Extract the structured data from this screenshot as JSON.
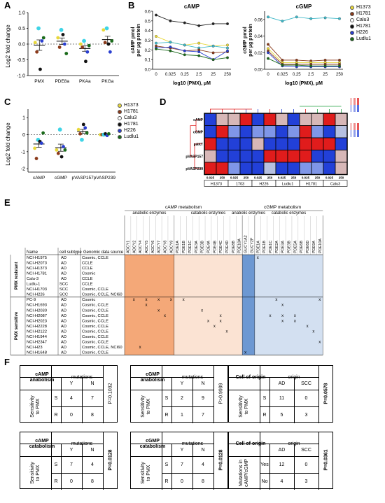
{
  "panels": {
    "A": "A",
    "B": "B",
    "C": "C",
    "D": "D",
    "E": "E",
    "F": "F"
  },
  "lines": [
    "H1373",
    "H1781",
    "Calu3",
    "H1781",
    "H226",
    "Ludlu1"
  ],
  "line_colors": [
    "#e8d83a",
    "#8b3a1a",
    "#ffffff",
    "#111111",
    "#2a3fd0",
    "#1a6a1a"
  ],
  "panelA": {
    "ylabel": "Log2 fold change",
    "categories": [
      "PMX",
      "PDE8a",
      "PKAa",
      "PKGa"
    ],
    "yticks": [
      "1.0",
      "0.5",
      "0.0",
      "-0.5",
      "-1.0"
    ]
  },
  "panelB": {
    "camp_title": "cAMP",
    "cgmp_title": "cGMP",
    "camp_ylabel": "cAMP pmol\nper µg protein",
    "cgmp_ylabel": "cGMP pmol\nper µg protein",
    "camp_yticks": [
      "0.6",
      "0.5",
      "0.4",
      "0.3",
      "0.2",
      "0.1",
      "0.0"
    ],
    "cgmp_yticks": [
      "0.06",
      "0.04",
      "0.02",
      "0.00"
    ],
    "xticks": [
      "0",
      "0.025",
      "0.25",
      "2.5",
      "25",
      "250"
    ],
    "xlabel": "log10 (PMX), µM"
  },
  "panelC": {
    "ylabel": "Log2 fold change",
    "categories": [
      "cAMP",
      "cGMP",
      "pVASP157",
      "pVASP239"
    ],
    "yticks": [
      "1",
      "0",
      "-1",
      "-2"
    ]
  },
  "panelD": {
    "rows": [
      "cAMP",
      "cGMP",
      "pAKT",
      "pVASP157",
      "pVASP239"
    ],
    "conc": [
      "0.025",
      "250",
      "0.025",
      "250",
      "0.025",
      "250",
      "0.025",
      "250",
      "0.025",
      "250",
      "0.025",
      "250"
    ],
    "groups": [
      "H1373",
      "1703",
      "H226",
      "Ludlu1",
      "H1781",
      "Calu3"
    ],
    "heat": [
      [
        "b",
        "pl",
        "pl",
        "r",
        "b",
        "r",
        "pl",
        "b",
        "pl",
        "pl",
        "r",
        "pl"
      ],
      [
        "b",
        "r",
        "lb",
        "b",
        "lb",
        "lb",
        "b",
        "lb",
        "r",
        "lb",
        "b",
        "pb"
      ],
      [
        "r",
        "b",
        "b",
        "b",
        "pl",
        "b",
        "b",
        "b",
        "r",
        "r",
        "r",
        "b"
      ],
      [
        "pl",
        "b",
        "b",
        "b",
        "b",
        "r",
        "r",
        "r",
        "r",
        "b",
        "b",
        "pl"
      ],
      [
        "r",
        "r",
        "lb",
        "b",
        "b",
        "pb",
        "b",
        "b",
        "lb",
        "lb",
        "b",
        "pl"
      ]
    ]
  },
  "panelE": {
    "title_camp": "cAMP metabolism",
    "title_cgmp": "cGMP metabolism",
    "sub_anabolic": "anabolic enzymes",
    "sub_catabolic": "catabolic enzymes",
    "col_name": "Name",
    "col_subtype": "cell subtype",
    "col_source": "Genomic data source",
    "camp_anabolic_genes": [
      "ADCY1",
      "ADCY2",
      "ADCY4",
      "ADCY5",
      "ADCY6",
      "ADCY7",
      "ADCY8",
      "ADCY9"
    ],
    "camp_catabolic_genes": [
      "PDE1A",
      "PDE1B",
      "PDE1C",
      "PDE3A",
      "PDE3B",
      "PDE4A",
      "PDE4B",
      "PDE4C",
      "PDE4D",
      "PDE8B",
      "PDE10A"
    ],
    "cgmp_anabolic_genes": [
      "GUCY1A2",
      "GUCY2F"
    ],
    "cgmp_catabolic_genes": [
      "PDE1A",
      "PDE1B",
      "PDE1C",
      "PDE2A",
      "PDE3A",
      "PDE3B",
      "PDE5A",
      "PDE6B",
      "PDE6D",
      "PDE9A",
      "PDE10A"
    ],
    "group_resistant": "PMX resistant",
    "group_sensitive": "PMX sensitive",
    "rows": [
      {
        "name": "NCI-H1975",
        "subtype": "AD",
        "source": "Cosmic, CCLE",
        "x": [
          null,
          null,
          null,
          [
            0
          ]
        ]
      },
      {
        "name": "NCI-H2073",
        "subtype": "AD",
        "source": "CCLE",
        "x": [
          null,
          null,
          null,
          null
        ]
      },
      {
        "name": "NCI-H1373",
        "subtype": "AD",
        "source": "CCLE",
        "x": [
          null,
          null,
          null,
          null
        ]
      },
      {
        "name": "NCI-H1781",
        "subtype": "AD",
        "source": "Cosmic",
        "x": [
          null,
          null,
          null,
          null
        ]
      },
      {
        "name": "Calu-3",
        "subtype": "AD",
        "source": "CCLE",
        "x": [
          null,
          null,
          null,
          null
        ]
      },
      {
        "name": "Ludlu-1",
        "subtype": "SCC",
        "source": "CCLE",
        "x": [
          null,
          null,
          null,
          null
        ]
      },
      {
        "name": "NCI-H1703",
        "subtype": "SCC",
        "source": "Cosmic, CCLE",
        "x": [
          null,
          null,
          null,
          null
        ]
      },
      {
        "name": "NCI-H226",
        "subtype": "SCC",
        "source": "Cosmic, CCLE, NCI60",
        "x": [
          null,
          null,
          null,
          null
        ]
      },
      {
        "name": "PC-9",
        "subtype": "AD",
        "source": "Cosmic",
        "x": [
          [
            1,
            3,
            5,
            7
          ],
          [
            1
          ],
          null,
          [
            3,
            10
          ]
        ]
      },
      {
        "name": "NCI-H1693",
        "subtype": "AD",
        "source": "Cosmic, CCLE",
        "x": [
          [
            3
          ],
          null,
          null,
          [
            4
          ]
        ]
      },
      {
        "name": "NCI-H2030",
        "subtype": "AD",
        "source": "Cosmic, CCLE",
        "x": [
          [
            5
          ],
          [
            4
          ],
          null,
          null
        ]
      },
      {
        "name": "NCI-H2087",
        "subtype": "AD",
        "source": "Cosmic, CCLE",
        "x": [
          [
            6
          ],
          [
            7
          ],
          null,
          [
            2,
            4,
            6
          ]
        ]
      },
      {
        "name": "NCI-H2023",
        "subtype": "AD",
        "source": "Cosmic, CCLE",
        "x": [
          null,
          [
            5,
            7
          ],
          null,
          [
            4,
            6
          ]
        ]
      },
      {
        "name": "NCI-H2228",
        "subtype": "AD",
        "source": "Cosmic, CCLE",
        "x": [
          null,
          [
            6
          ],
          null,
          [
            8
          ]
        ]
      },
      {
        "name": "NCI-H2122",
        "subtype": "AD",
        "source": "Cosmic, CCLE",
        "x": [
          null,
          [
            8
          ],
          null,
          [
            9
          ]
        ]
      },
      {
        "name": "NCI-H1944",
        "subtype": "AD",
        "source": "Cosmic, CCLE",
        "x": [
          null,
          null,
          null,
          null
        ]
      },
      {
        "name": "NCI-H2347",
        "subtype": "AD",
        "source": "Cosmic, CCLE",
        "x": [
          null,
          null,
          null,
          [
            10
          ]
        ]
      },
      {
        "name": "NCI-H23",
        "subtype": "AD",
        "source": "Cosmic, CCLE, NCI60",
        "x": [
          [
            2
          ],
          null,
          null,
          null
        ]
      },
      {
        "name": "NCI-H1648",
        "subtype": "AD",
        "source": "Cosmic, CCLE",
        "x": [
          null,
          null,
          [
            0
          ],
          null
        ]
      }
    ]
  },
  "panelF": {
    "t1": {
      "title": "cAMP\nanabolism",
      "mut": "mutations",
      "Y": "Y",
      "N": "N",
      "sens": "Sensitivity\nto PMX",
      "S": "S",
      "R": "R",
      "vals": [
        "4",
        "7",
        "0",
        "8"
      ],
      "p": "P=0.1032"
    },
    "t2": {
      "title": "cGMP\nanabolism",
      "mut": "mutations",
      "Y": "Y",
      "N": "N",
      "sens": "Sensitivity\nto PMX",
      "S": "S",
      "R": "R",
      "vals": [
        "2",
        "9",
        "1",
        "7"
      ],
      "p": "P>0.9999"
    },
    "t3": {
      "title": "Cell of origin",
      "mut": "origin",
      "Y": "AD",
      "N": "SCC",
      "sens": "Sensitivity\nto PMX",
      "S": "S",
      "R": "R",
      "vals": [
        "11",
        "0",
        "5",
        "3"
      ],
      "p": "P=0.0578"
    },
    "t4": {
      "title": "cAMP\ncatabolism",
      "mut": "mutations",
      "Y": "Y",
      "N": "N",
      "sens": "Sensitivity\nto PMX",
      "S": "S",
      "R": "R",
      "vals": [
        "7",
        "4",
        "0",
        "8"
      ],
      "p": "P=0.0128"
    },
    "t5": {
      "title": "cGMP\ncatabolism",
      "mut": "mutations",
      "Y": "Y",
      "N": "N",
      "sens": "Sensitivity\nto PMX",
      "S": "S",
      "R": "R",
      "vals": [
        "7",
        "4",
        "0",
        "8"
      ],
      "p": "P=0.0128"
    },
    "t6": {
      "title": "Cell of origin",
      "mut": "origin",
      "Y": "AD",
      "N": "SCC",
      "sens": "Mutations in\ncAMP/cGMP",
      "S": "Yes",
      "R": "No",
      "vals": [
        "12",
        "0",
        "4",
        "3"
      ],
      "p": "P=0.0361"
    }
  },
  "chart_data": [
    {
      "type": "scatter",
      "title": "",
      "ylabel": "Log2 fold change",
      "categories": [
        "PMX",
        "PDE8a",
        "PKAa",
        "PKGa"
      ],
      "ylim": [
        -1,
        1
      ],
      "series": [
        {
          "name": "H1373",
          "values": [
            0.05,
            0.2,
            0.0,
            0.45
          ]
        },
        {
          "name": "H1781",
          "values": [
            -0.25,
            -0.1,
            -0.1,
            0.05
          ]
        },
        {
          "name": "Calu3",
          "values": [
            0.5,
            0.45,
            0.1,
            0.5
          ]
        },
        {
          "name": "H1781",
          "values": [
            -0.8,
            0.3,
            -0.55,
            0.0
          ]
        },
        {
          "name": "H226",
          "values": [
            0.1,
            0.0,
            -0.25,
            -0.25
          ]
        },
        {
          "name": "Ludlu1",
          "values": [
            0.2,
            -0.3,
            -0.05,
            0.1
          ]
        }
      ]
    },
    {
      "type": "line",
      "title": "cAMP",
      "xlabel": "log10 (PMX), µM",
      "ylabel": "cAMP pmol per µg protein",
      "categories": [
        "0",
        "0.025",
        "0.25",
        "2.5",
        "25",
        "250"
      ],
      "ylim": [
        0,
        0.6
      ],
      "series": [
        {
          "name": "H1781",
          "values": [
            0.56,
            0.5,
            0.48,
            0.45,
            0.47,
            0.47
          ]
        },
        {
          "name": "H1373",
          "values": [
            0.34,
            0.28,
            0.25,
            0.27,
            0.24,
            0.25
          ]
        },
        {
          "name": "Calu3",
          "values": [
            0.27,
            0.28,
            0.25,
            0.22,
            0.24,
            0.22
          ]
        },
        {
          "name": "H1781",
          "values": [
            0.24,
            0.22,
            0.19,
            0.2,
            0.17,
            0.18
          ]
        },
        {
          "name": "H226",
          "values": [
            0.22,
            0.23,
            0.19,
            0.18,
            0.1,
            0.19
          ]
        },
        {
          "name": "Ludlu1",
          "values": [
            0.21,
            0.19,
            0.15,
            0.14,
            0.1,
            0.12
          ]
        }
      ]
    },
    {
      "type": "line",
      "title": "cGMP",
      "xlabel": "log10 (PMX), µM",
      "ylabel": "cGMP pmol per µg protein",
      "categories": [
        "0",
        "0.025",
        "0.25",
        "2.5",
        "25",
        "250"
      ],
      "ylim": [
        0,
        0.07
      ],
      "series": [
        {
          "name": "Calu3",
          "values": [
            0.063,
            0.058,
            0.063,
            0.061,
            0.062,
            0.061
          ]
        },
        {
          "name": "H1781",
          "values": [
            0.03,
            0.011,
            0.011,
            0.01,
            0.011,
            0.011
          ]
        },
        {
          "name": "H1373",
          "values": [
            0.025,
            0.008,
            0.008,
            0.008,
            0.008,
            0.008
          ]
        },
        {
          "name": "H1781",
          "values": [
            0.022,
            0.006,
            0.006,
            0.006,
            0.006,
            0.006
          ]
        },
        {
          "name": "H226",
          "values": [
            0.02,
            0.004,
            0.003,
            0.003,
            0.003,
            0.003
          ]
        },
        {
          "name": "Ludlu1",
          "values": [
            0.013,
            0.005,
            0.005,
            0.004,
            0.004,
            0.004
          ]
        }
      ]
    },
    {
      "type": "scatter",
      "title": "",
      "ylabel": "Log2 fold change",
      "categories": [
        "cAMP",
        "cGMP",
        "pVASP157",
        "pVASP239"
      ],
      "ylim": [
        -2.2,
        1.5
      ],
      "series": [
        {
          "name": "H1373",
          "values": [
            -0.8,
            -0.9,
            0.3,
            0.0
          ]
        },
        {
          "name": "H1781",
          "values": [
            -1.4,
            -1.1,
            0.05,
            0.0
          ]
        },
        {
          "name": "Calu3",
          "values": [
            -0.3,
            0.3,
            -0.3,
            0.0
          ]
        },
        {
          "name": "H1781",
          "values": [
            -0.4,
            -1.3,
            0.6,
            0.05
          ]
        },
        {
          "name": "H226",
          "values": [
            -0.5,
            -0.7,
            0.4,
            -0.05
          ]
        },
        {
          "name": "Ludlu1",
          "values": [
            0.1,
            -0.9,
            0.1,
            0.05
          ]
        }
      ]
    }
  ]
}
